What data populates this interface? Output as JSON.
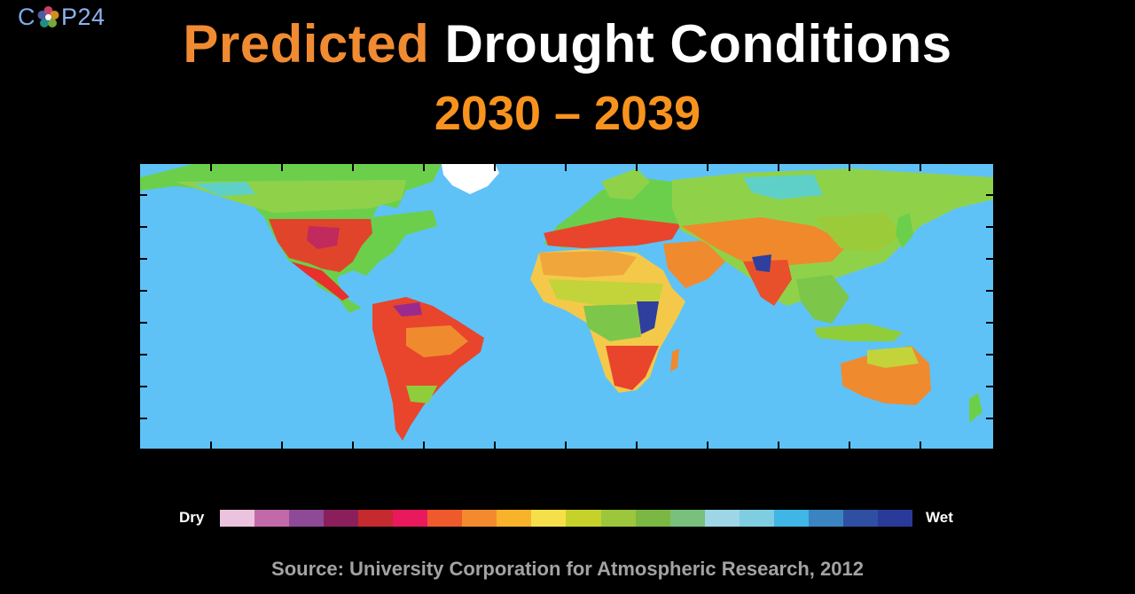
{
  "logo": {
    "text_prefix": "C",
    "text_suffix": "P24"
  },
  "title": {
    "accent_word": "Predicted",
    "rest": "Drought Conditions"
  },
  "subtitle": "2030 – 2039",
  "map": {
    "ocean_color": "#5ec2f7",
    "land_palette": {
      "dry": "#e23a2c",
      "very_dry": "#9a2a8c",
      "moderate": "#f08a2e",
      "neutral": "#f4e04d",
      "moist": "#9acd32",
      "wet": "#4cb848",
      "very_wet": "#2e3f9e",
      "ice": "#ffffff",
      "teal": "#5fd0c8"
    }
  },
  "legend": {
    "dry_label": "Dry",
    "wet_label": "Wet",
    "colors": [
      "#ebc3df",
      "#c26aa9",
      "#8e4a97",
      "#8a1f5c",
      "#c42a2e",
      "#e8195c",
      "#ee5a2b",
      "#f38a2e",
      "#f9b32a",
      "#f5e04b",
      "#c6d22a",
      "#9cc63b",
      "#7ab843",
      "#78c07b",
      "#9dd6e6",
      "#7fcde1",
      "#3fb6e6",
      "#3b84c2",
      "#2f4fa2",
      "#2a3a99"
    ]
  },
  "source": "Source: University Corporation for Atmospheric Research, 2012"
}
